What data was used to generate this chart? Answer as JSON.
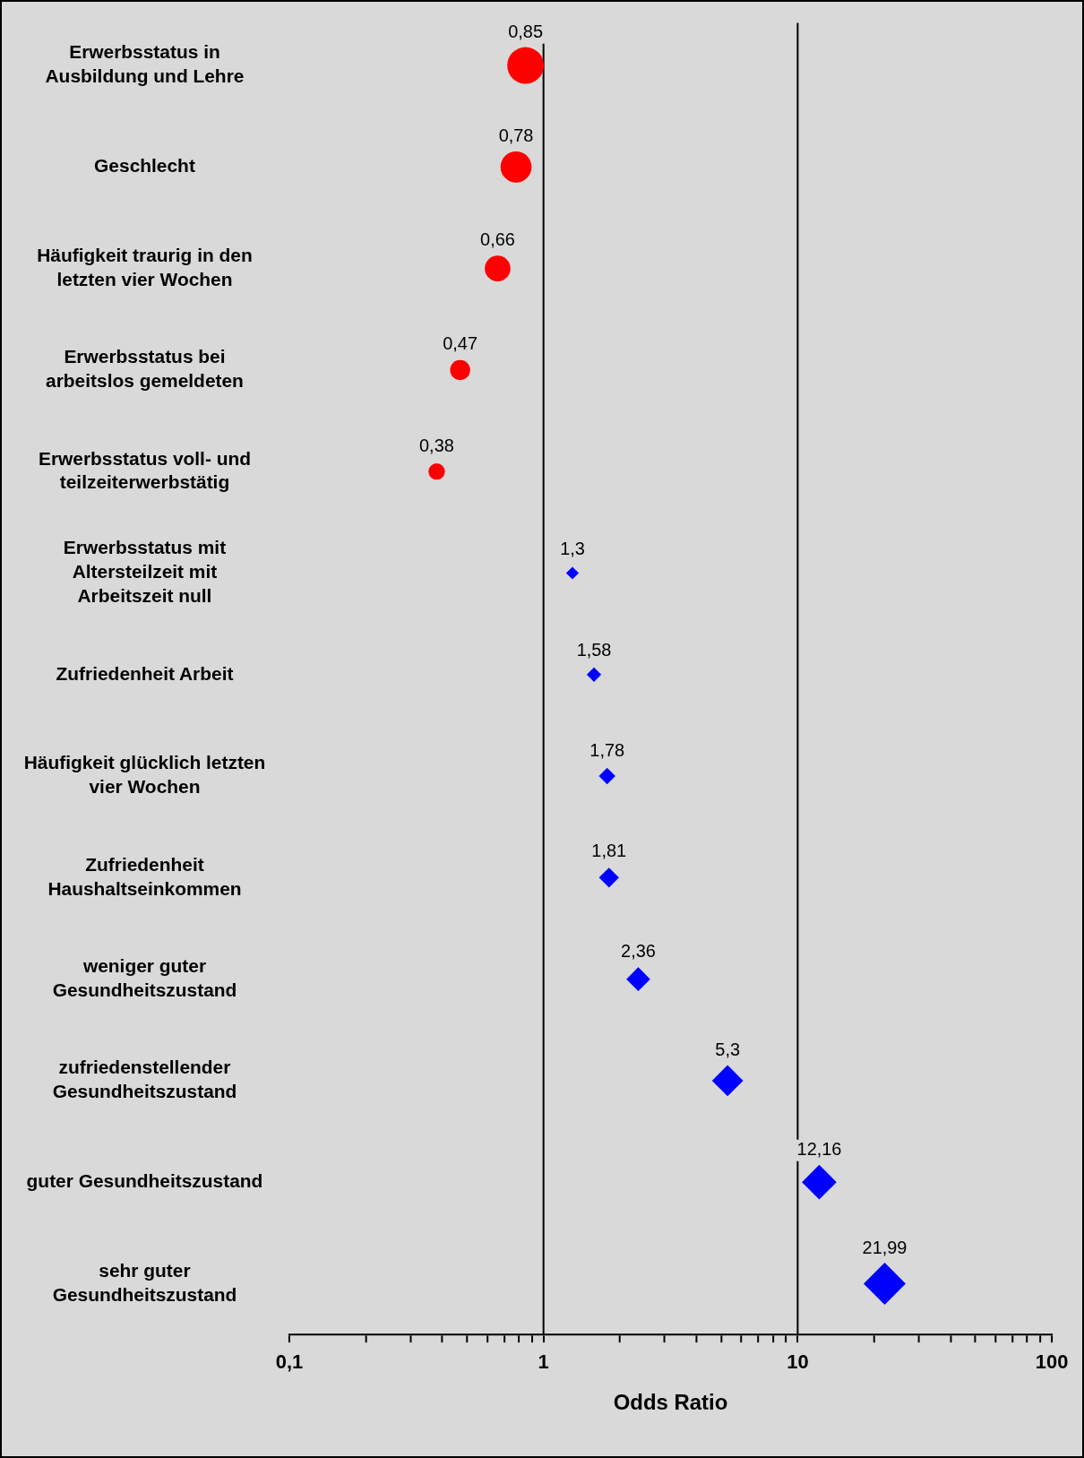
{
  "chart_data": {
    "type": "bubble",
    "orientation": "horizontal",
    "xlabel": "Odds Ratio",
    "log": "x",
    "xlim": [
      0.1,
      100
    ],
    "xticks": [
      {
        "value": 0.1,
        "label": "0,1"
      },
      {
        "value": 0.2,
        "label": null
      },
      {
        "value": 0.3,
        "label": null
      },
      {
        "value": 0.4,
        "label": null
      },
      {
        "value": 0.5,
        "label": null
      },
      {
        "value": 0.6,
        "label": null
      },
      {
        "value": 0.7,
        "label": null
      },
      {
        "value": 0.8,
        "label": null
      },
      {
        "value": 0.9,
        "label": null
      },
      1,
      {
        "value": 2,
        "label": null
      },
      {
        "value": 3,
        "label": null
      },
      {
        "value": 4,
        "label": null
      },
      {
        "value": 5,
        "label": null
      },
      {
        "value": 6,
        "label": null
      },
      {
        "value": 7,
        "label": null
      },
      {
        "value": 8,
        "label": null
      },
      {
        "value": 9,
        "label": null
      },
      10,
      {
        "value": 20,
        "label": null
      },
      {
        "value": 30,
        "label": null
      },
      {
        "value": 40,
        "label": null
      },
      {
        "value": 50,
        "label": null
      },
      {
        "value": 60,
        "label": null
      },
      {
        "value": 70,
        "label": null
      },
      {
        "value": 80,
        "label": null
      },
      {
        "value": 90,
        "label": null
      },
      100
    ],
    "categories": [
      "Erwerbsstatus in Ausbildung und Lehre",
      "Geschlecht",
      "Häufigkeit traurig in den letzten vier Wochen",
      "Erwerbsstatus bei arbeitslos gemeldeten",
      "Erwerbsstatus voll- und teilzeiterwerbstätig",
      "Erwerbsstatus mit Altersteilzeit mit Arbeitszeit null",
      "Zufriedenheit Arbeit",
      "Häufigkeit glücklich letzten vier Wochen",
      "Zufriedenheit Haushaltseinkommen",
      "weniger guter Gesundheitszustand",
      "zufriedenstellender Gesundheitszustand",
      "guter Gesundheitszustand",
      "sehr guter Gesundheitszustand"
    ],
    "series": [
      {
        "color": "#ff0000",
        "marker": "circle",
        "values": [
          0.85,
          0.78,
          0.66,
          0.47,
          0.38,
          null,
          null,
          null,
          null,
          null,
          null,
          null,
          null
        ],
        "sizes": [
          1,
          0.72,
          0.49,
          0.3,
          0.2,
          null,
          null,
          null,
          null,
          null,
          null,
          null,
          null
        ],
        "value_labels": [
          "0,85",
          "0,78",
          "0,66",
          "0,47",
          "0,38",
          null,
          null,
          null,
          null,
          null,
          null,
          null,
          null
        ]
      },
      {
        "color": "#0000ff",
        "marker": "diamond",
        "values": [
          null,
          null,
          null,
          null,
          null,
          1.3,
          1.58,
          1.78,
          1.81,
          2.36,
          5.3,
          12.16,
          21.99
        ],
        "sizes": [
          null,
          null,
          null,
          null,
          null,
          0.076,
          0.1,
          0.13,
          0.19,
          0.27,
          0.46,
          0.57,
          0.84
        ],
        "value_labels": [
          null,
          null,
          null,
          null,
          null,
          "1,3",
          "1,58",
          "1,78",
          "1,81",
          "2,36",
          "5,3",
          "12,16",
          "21,99"
        ]
      }
    ],
    "ref_lines": [
      {
        "axis": "x",
        "value": 1,
        "color": "#000000"
      },
      {
        "axis": "x",
        "value": 10,
        "color": "#000000"
      }
    ],
    "grid": false,
    "legend": false
  }
}
